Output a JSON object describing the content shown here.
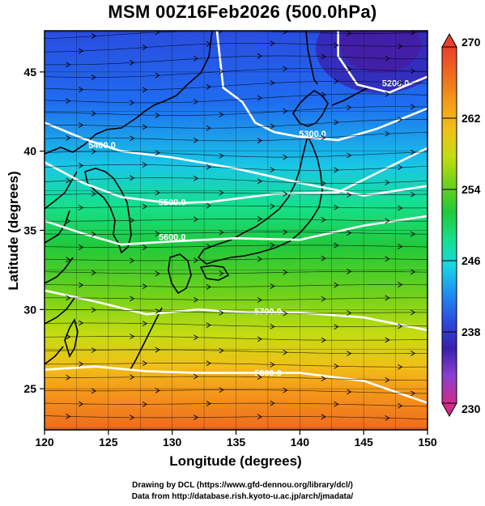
{
  "title": "MSM 00Z16Feb2026 (500.0hPa)",
  "xlabel": "Longitude (degrees)",
  "ylabel": "Latitude  (degrees)",
  "x_ticks": [
    "120",
    "125",
    "130",
    "135",
    "140",
    "145",
    "150"
  ],
  "y_ticks": [
    "25",
    "30",
    "35",
    "40",
    "45"
  ],
  "colorbar": {
    "min": 230,
    "max": 270,
    "tick_labels": [
      "270",
      "262",
      "254",
      "246",
      "238",
      "230"
    ],
    "colors": [
      "#d02a8a",
      "#8a3fd0",
      "#3a1fae",
      "#2a4de0",
      "#1f8df0",
      "#19d6e6",
      "#16e08a",
      "#21c93a",
      "#6fd21a",
      "#c4dc12",
      "#f0c018",
      "#f59a1a",
      "#ef6a1e",
      "#e8412c"
    ]
  },
  "contour_labels": [
    "5200.0",
    "5300.0",
    "5400.0",
    "5500.0",
    "5600.0",
    "5700.0",
    "5800.0"
  ],
  "credits": {
    "line1": "Drawing by DCL (https://www.gfd-dennou.org/library/dcl/)",
    "line2": "Data from http://database.rish.kyoto-u.ac.jp/arch/jmadata/"
  },
  "chart_data": {
    "type": "heatmap",
    "title": "MSM 00Z16Feb2026 (500.0hPa)",
    "xlabel": "Longitude (degrees)",
    "ylabel": "Latitude  (degrees)",
    "xlim": [
      120,
      150
    ],
    "ylim": [
      22.4,
      47.6
    ],
    "color_range": [
      230,
      270
    ],
    "contours": [
      {
        "level": 5200,
        "points": [
          [
            143,
            47.6
          ],
          [
            143,
            46.0
          ],
          [
            144.5,
            44.2
          ],
          [
            147,
            43.7
          ],
          [
            150,
            44.7
          ]
        ]
      },
      {
        "level": 5300,
        "points": [
          [
            133.5,
            47.6
          ],
          [
            134.0,
            44.0
          ],
          [
            135.5,
            43.1
          ],
          [
            136.5,
            41.8
          ],
          [
            138,
            41.2
          ],
          [
            140,
            40.9
          ],
          [
            143,
            40.7
          ],
          [
            146,
            41.4
          ],
          [
            150,
            42.7
          ]
        ]
      },
      {
        "level": 5400,
        "points": [
          [
            120,
            41.8
          ],
          [
            123,
            40.8
          ],
          [
            126,
            40.0
          ],
          [
            130,
            39.6
          ],
          [
            135,
            38.9
          ],
          [
            140,
            38.0
          ],
          [
            145,
            37.2
          ],
          [
            150,
            37.8
          ]
        ]
      },
      {
        "level": 5500,
        "points": [
          [
            120,
            39.3
          ],
          [
            123,
            38.0
          ],
          [
            126,
            37.1
          ],
          [
            130,
            36.7
          ],
          [
            133,
            36.8
          ],
          [
            138,
            37.3
          ],
          [
            143,
            37.4
          ],
          [
            150,
            40.2
          ]
        ]
      },
      {
        "level": 5600,
        "points": [
          [
            120,
            35.6
          ],
          [
            123,
            34.8
          ],
          [
            126,
            34.1
          ],
          [
            130,
            34.3
          ],
          [
            135,
            34.5
          ],
          [
            140,
            34.4
          ],
          [
            145,
            35.3
          ],
          [
            150,
            35.9
          ]
        ]
      },
      {
        "level": 5700,
        "points": [
          [
            120,
            31.2
          ],
          [
            124,
            30.5
          ],
          [
            128,
            29.7
          ],
          [
            132,
            30.0
          ],
          [
            136,
            29.8
          ],
          [
            140,
            29.8
          ],
          [
            145,
            29.5
          ],
          [
            150,
            28.7
          ]
        ]
      },
      {
        "level": 5800,
        "points": [
          [
            120,
            26.2
          ],
          [
            124,
            26.4
          ],
          [
            128,
            26.1
          ],
          [
            132,
            26.0
          ],
          [
            137,
            26.0
          ],
          [
            140,
            26.0
          ],
          [
            145,
            25.5
          ],
          [
            150,
            24.1
          ]
        ]
      }
    ]
  }
}
